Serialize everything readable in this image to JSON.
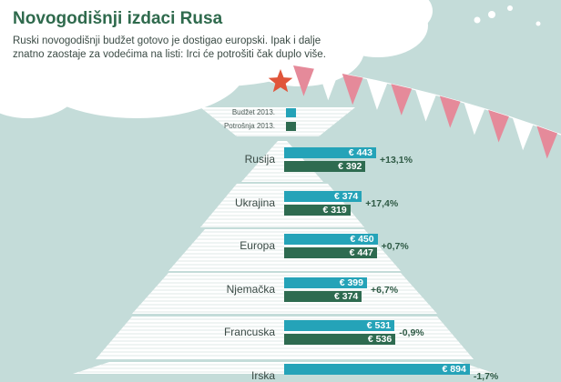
{
  "header": {
    "title": "Novogodišnji izdaci Rusa",
    "subtitle": "Ruski novogodišnji budžet gotovo je dostigao europski. Ipak i dalje znatno zaostaje za vodećima na listi: Irci će potrošiti čak duplo više."
  },
  "legend": {
    "budget_label": "Budžet 2013.",
    "spend_label": "Potrošnja 2013."
  },
  "colors": {
    "background": "#c4dcd9",
    "budget": "#25a3b8",
    "spend": "#2e6b50",
    "tree": "#ffffff",
    "star": "#e0553a",
    "flag_red": "#e58a9a",
    "flag_white": "#ffffff",
    "title": "#2f6a4d"
  },
  "chart_data": {
    "type": "bar",
    "title": "Novogodišnji izdaci Rusa",
    "categories": [
      "Rusija",
      "Ukrajina",
      "Europa",
      "Njemačka",
      "Francuska",
      "Irska"
    ],
    "series": [
      {
        "name": "Budžet 2013.",
        "values": [
          443,
          374,
          450,
          399,
          531,
          894
        ],
        "labels": [
          "€ 443",
          "€ 374",
          "€ 450",
          "€ 399",
          "€ 531",
          "€ 894"
        ]
      },
      {
        "name": "Potrošnja 2013.",
        "values": [
          392,
          319,
          447,
          374,
          536,
          null
        ],
        "labels": [
          "€ 392",
          "€ 319",
          "€ 447",
          "€ 374",
          "€ 536",
          ""
        ]
      }
    ],
    "changes": [
      "+13,1%",
      "+17,4%",
      "+0,7%",
      "+6,7%",
      "-0,9%",
      "-1,7%"
    ]
  }
}
